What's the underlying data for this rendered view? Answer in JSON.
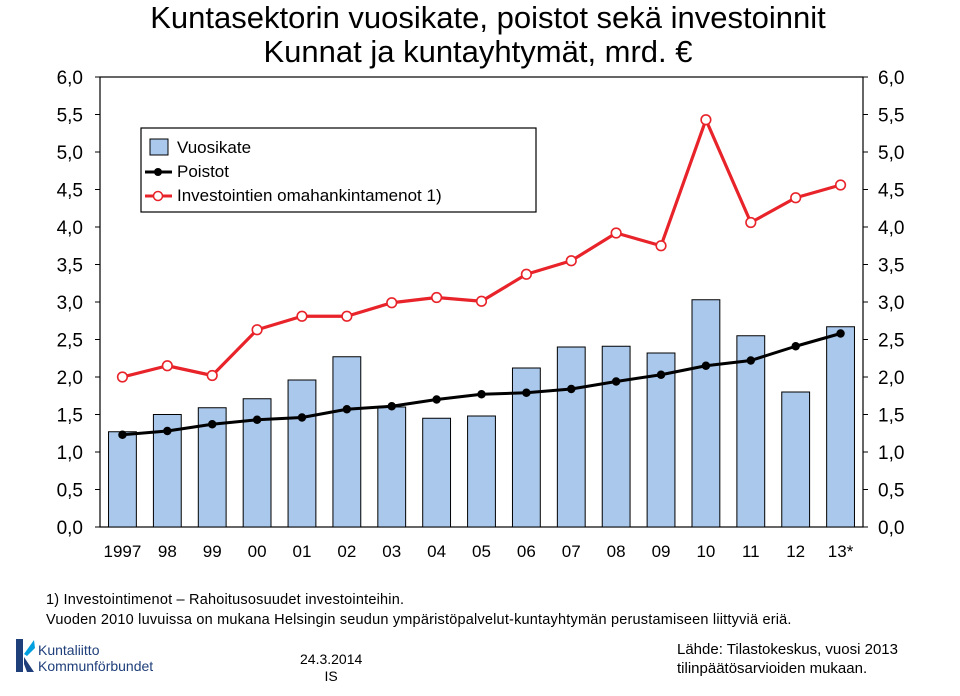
{
  "chart_data": {
    "type": "bar",
    "title": "Kuntasektorin vuosikate, poistot sekä investoinnit",
    "subtitle": "Kunnat ja kuntayhtymät, mrd. €",
    "categories": [
      "1997",
      "98",
      "99",
      "00",
      "01",
      "02",
      "03",
      "04",
      "05",
      "06",
      "07",
      "08",
      "09",
      "10",
      "11",
      "12",
      "13*"
    ],
    "ylim": [
      0,
      6
    ],
    "yticks": [
      "0,0",
      "0,5",
      "1,0",
      "1,5",
      "2,0",
      "2,5",
      "3,0",
      "3,5",
      "4,0",
      "4,5",
      "5,0",
      "5,5",
      "6,0"
    ],
    "grid": false,
    "legend_position": "top-left",
    "series": [
      {
        "name": "Vuosikate",
        "kind": "bar",
        "color": "#a9c8ec",
        "values": [
          1.27,
          1.5,
          1.59,
          1.71,
          1.96,
          2.27,
          1.6,
          1.45,
          1.48,
          2.12,
          2.4,
          2.41,
          2.32,
          3.03,
          2.55,
          1.8,
          2.67
        ]
      },
      {
        "name": "Poistot",
        "kind": "line",
        "color": "#000000",
        "values": [
          1.23,
          1.28,
          1.37,
          1.43,
          1.46,
          1.57,
          1.61,
          1.7,
          1.77,
          1.79,
          1.84,
          1.94,
          2.03,
          2.15,
          2.22,
          2.41,
          2.58
        ]
      },
      {
        "name": "Investointien omahankintamenot 1)",
        "kind": "line",
        "color": "#e8232a",
        "values": [
          2.0,
          2.15,
          2.02,
          2.63,
          2.81,
          2.81,
          2.99,
          3.06,
          3.01,
          3.37,
          3.55,
          3.92,
          3.75,
          5.43,
          4.06,
          4.39,
          4.56
        ]
      }
    ]
  },
  "footnotes": {
    "line1": "1) Investointimenot – Rahoitusosuudet investointeihin.",
    "line2": "Vuoden 2010 luvuissa on mukana Helsingin seudun ympäristöpalvelut-kuntayhtymän perustamiseen liittyviä eriä."
  },
  "footer": {
    "date": "24.3.2014",
    "initials": "IS",
    "source_line1": "Lähde: Tilastokeskus, vuosi 2013",
    "source_line2": "tilinpäätösarvioiden mukaan."
  },
  "logo": {
    "line1": "Kuntaliitto",
    "line2": "Kommunförbundet",
    "color": "#1f3f7a",
    "accent": "#00a0e0"
  }
}
